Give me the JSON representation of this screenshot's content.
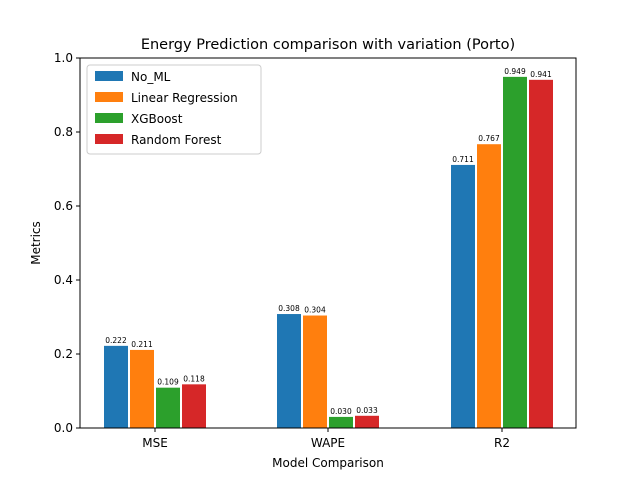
{
  "chart_data": {
    "type": "bar",
    "title": "Energy Prediction comparison with variation (Porto)",
    "xlabel": "Model Comparison",
    "ylabel": "Metrics",
    "ylim": [
      0,
      1.0
    ],
    "yticks": [
      "0.0",
      "0.2",
      "0.4",
      "0.6",
      "0.8",
      "1.0"
    ],
    "categories": [
      "MSE",
      "WAPE",
      "R2"
    ],
    "legend_position": "top-left",
    "grid": false,
    "series": [
      {
        "name": "No_ML",
        "color": "#1f77b4",
        "values": [
          0.222,
          0.308,
          0.711
        ],
        "labels": [
          "0.222",
          "0.308",
          "0.711"
        ]
      },
      {
        "name": "Linear Regression",
        "color": "#ff7f0e",
        "values": [
          0.211,
          0.304,
          0.767
        ],
        "labels": [
          "0.211",
          "0.304",
          "0.767"
        ]
      },
      {
        "name": "XGBoost",
        "color": "#2ca02c",
        "values": [
          0.109,
          0.03,
          0.949
        ],
        "labels": [
          "0.109",
          "0.030",
          "0.949"
        ]
      },
      {
        "name": "Random Forest",
        "color": "#d62728",
        "values": [
          0.118,
          0.033,
          0.941
        ],
        "labels": [
          "0.118",
          "0.033",
          "0.941"
        ]
      }
    ]
  }
}
